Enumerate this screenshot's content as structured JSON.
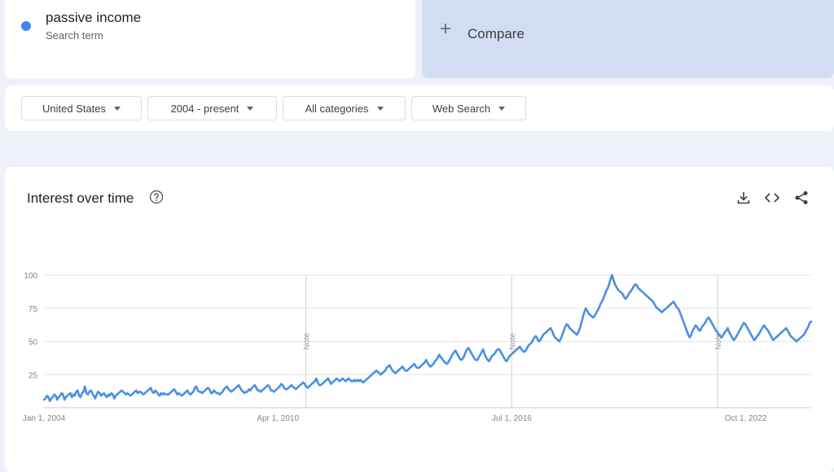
{
  "search": {
    "term": "passive income",
    "term_type": "Search term",
    "dot_color": "#4285f4",
    "compare_icon": "plus-icon",
    "compare_label": "Compare"
  },
  "filters": [
    {
      "label": "United States"
    },
    {
      "label": "2004 - present"
    },
    {
      "label": "All categories"
    },
    {
      "label": "Web Search"
    }
  ],
  "panel": {
    "title": "Interest over time",
    "icons": [
      "help-icon",
      "download-icon",
      "embed-icon",
      "share-icon"
    ]
  },
  "chart_data": {
    "type": "line",
    "title": "Interest over time",
    "x_start": "2004-01",
    "x_end": "2024-07",
    "x_ticks": [
      "Jan 1, 2004",
      "Apr 1, 2010",
      "Jul 1, 2016",
      "Oct 1, 2022"
    ],
    "y_ticks": [
      25,
      50,
      75,
      100
    ],
    "ylim": [
      0,
      100
    ],
    "grid": true,
    "line_color": "#4a90e2",
    "notes": [
      {
        "x": "2011-01",
        "label": "Note"
      },
      {
        "x": "2016-07",
        "label": "Note"
      },
      {
        "x": "2022-01",
        "label": "Note"
      }
    ],
    "series": [
      {
        "values": [
          6,
          7,
          9,
          8,
          5,
          7,
          8,
          10,
          9,
          6,
          8,
          9,
          11,
          10,
          6,
          8,
          9,
          10,
          11,
          8,
          10,
          9,
          12,
          13,
          9,
          8,
          11,
          12,
          16,
          11,
          10,
          12,
          13,
          11,
          9,
          7,
          10,
          12,
          11,
          9,
          10,
          11,
          9,
          8,
          10,
          9,
          11,
          10,
          7,
          9,
          10,
          11,
          12,
          13,
          12,
          11,
          10,
          11,
          10,
          9,
          10,
          11,
          12,
          13,
          11,
          12,
          12,
          11,
          10,
          11,
          12,
          13,
          14,
          15,
          12,
          11,
          13,
          12,
          10,
          9,
          11,
          10,
          11,
          10,
          10,
          10,
          11,
          12,
          13,
          14,
          12,
          10,
          11,
          10,
          9,
          10,
          11,
          12,
          13,
          11,
          10,
          11,
          12,
          15,
          16,
          13,
          12,
          12,
          11,
          12,
          13,
          14,
          15,
          14,
          11,
          11,
          13,
          12,
          11,
          11,
          10,
          11,
          12,
          14,
          15,
          16,
          14,
          13,
          12,
          13,
          14,
          15,
          16,
          17,
          15,
          13,
          12,
          11,
          12,
          12,
          14,
          13,
          15,
          16,
          17,
          15,
          13,
          13,
          12,
          13,
          14,
          15,
          16,
          17,
          16,
          13,
          13,
          12,
          13,
          14,
          15,
          16,
          18,
          17,
          15,
          14,
          14,
          15,
          16,
          17,
          16,
          15,
          14,
          15,
          16,
          17,
          18,
          19,
          18,
          16,
          15,
          16,
          17,
          18,
          19,
          20,
          22,
          19,
          17,
          17,
          18,
          19,
          20,
          21,
          22,
          20,
          18,
          19,
          20,
          21,
          22,
          21,
          20,
          21,
          22,
          21,
          20,
          21,
          22,
          21,
          20,
          20,
          21,
          20,
          21,
          20,
          21,
          20,
          19,
          20,
          21,
          22,
          23,
          24,
          25,
          26,
          27,
          28,
          27,
          26,
          25,
          26,
          27,
          28,
          30,
          31,
          32,
          30,
          28,
          27,
          26,
          27,
          28,
          29,
          30,
          31,
          29,
          28,
          28,
          29,
          30,
          31,
          32,
          33,
          31,
          30,
          30,
          31,
          32,
          33,
          34,
          36,
          34,
          32,
          31,
          32,
          33,
          35,
          36,
          38,
          40,
          38,
          37,
          35,
          34,
          33,
          34,
          36,
          38,
          40,
          42,
          43,
          41,
          39,
          37,
          36,
          37,
          39,
          42,
          44,
          45,
          43,
          41,
          39,
          37,
          36,
          36,
          38,
          40,
          42,
          44,
          40,
          38,
          36,
          35,
          37,
          39,
          40,
          41,
          43,
          44,
          44,
          42,
          40,
          38,
          36,
          35,
          37,
          39,
          40,
          41,
          42,
          43,
          44,
          45,
          46,
          44,
          43,
          42,
          43,
          45,
          47,
          48,
          49,
          51,
          53,
          54,
          52,
          50,
          51,
          53,
          55,
          56,
          57,
          58,
          59,
          60,
          58,
          55,
          53,
          52,
          51,
          50,
          52,
          55,
          58,
          61,
          63,
          62,
          60,
          59,
          58,
          57,
          56,
          55,
          57,
          60,
          64,
          68,
          72,
          75,
          73,
          71,
          70,
          69,
          68,
          69,
          71,
          73,
          75,
          78,
          80,
          82,
          85,
          88,
          90,
          93,
          97,
          100,
          96,
          93,
          91,
          89,
          88,
          87,
          86,
          84,
          82,
          83,
          85,
          87,
          88,
          90,
          92,
          93,
          92,
          90,
          89,
          88,
          87,
          86,
          85,
          84,
          83,
          82,
          81,
          80,
          78,
          76,
          75,
          74,
          73,
          72,
          73,
          74,
          75,
          76,
          77,
          78,
          79,
          80,
          78,
          76,
          75,
          73,
          70,
          67,
          64,
          61,
          58,
          55,
          53,
          55,
          58,
          60,
          62,
          61,
          59,
          58,
          60,
          62,
          63,
          65,
          67,
          68,
          66,
          64,
          62,
          60,
          58,
          57,
          55,
          54,
          53,
          55,
          57,
          58,
          60,
          57,
          55,
          53,
          51,
          52,
          54,
          56,
          58,
          60,
          62,
          64,
          63,
          61,
          59,
          57,
          55,
          53,
          51,
          52,
          54,
          55,
          57,
          59,
          61,
          62,
          60,
          59,
          57,
          55,
          53,
          51,
          52,
          53,
          54,
          55,
          56,
          57,
          58,
          59,
          60,
          58,
          56,
          54,
          53,
          52,
          51,
          50,
          51,
          52,
          53,
          54,
          55,
          57,
          59,
          61,
          64,
          65
        ]
      }
    ]
  }
}
